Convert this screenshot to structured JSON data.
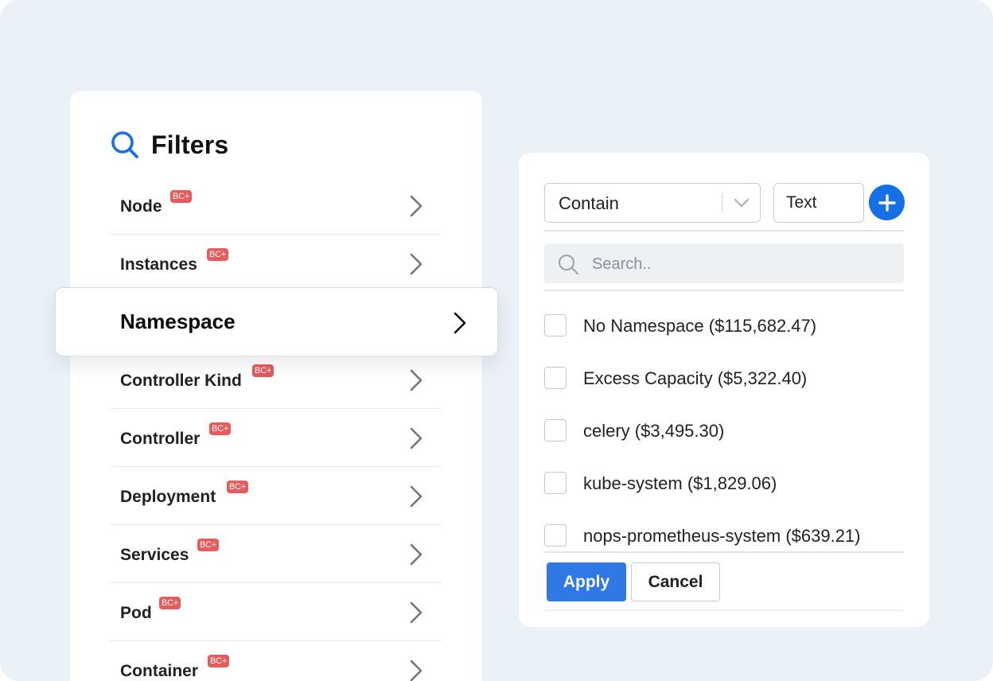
{
  "filters": {
    "title": "Filters",
    "items": [
      {
        "label": "Node",
        "badge": "BC+"
      },
      {
        "label": "Instances",
        "badge": "BC+"
      },
      {
        "label": "",
        "badge": ""
      },
      {
        "label": "Controller Kind",
        "badge": "BC+"
      },
      {
        "label": "Controller",
        "badge": "BC+"
      },
      {
        "label": "Deployment",
        "badge": "BC+"
      },
      {
        "label": "Services",
        "badge": "BC+"
      },
      {
        "label": "Pod",
        "badge": "BC+"
      },
      {
        "label": "Container",
        "badge": "BC+"
      }
    ],
    "selected": {
      "label": "Namespace"
    }
  },
  "value_panel": {
    "operator": {
      "selected": "Contain"
    },
    "text_input": {
      "value": "Text"
    },
    "search": {
      "placeholder": "Search.."
    },
    "options": [
      {
        "label": "No Namespace ($115,682.47)",
        "checked": false
      },
      {
        "label": "Excess Capacity ($5,322.40)",
        "checked": false
      },
      {
        "label": "celery ($3,495.30)",
        "checked": false
      },
      {
        "label": "kube-system ($1,829.06)",
        "checked": false
      },
      {
        "label": "nops-prometheus-system ($639.21)",
        "checked": false
      }
    ],
    "apply_label": "Apply",
    "cancel_label": "Cancel"
  },
  "colors": {
    "accent": "#1570e8",
    "badge": "#e65b5b",
    "background": "#eaf1f8"
  },
  "icons": {
    "header": "search-icon",
    "row": "chevron-right-icon",
    "add": "plus-icon",
    "select": "chevron-down-icon"
  }
}
